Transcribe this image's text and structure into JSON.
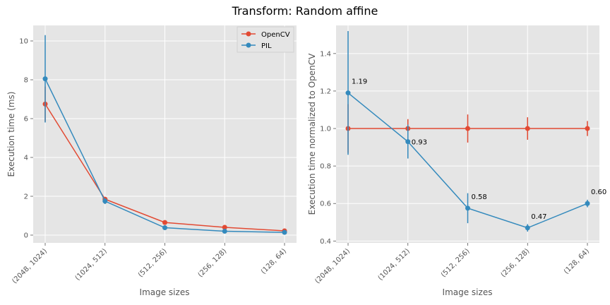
{
  "figure": {
    "title": "Transform: Random affine"
  },
  "chart_data": [
    {
      "type": "line",
      "title": "",
      "xlabel": "Image sizes",
      "ylabel": "Execution time (ms)",
      "categories": [
        "(2048, 1024)",
        "(1024, 512)",
        "(512, 256)",
        "(256, 128)",
        "(128, 64)"
      ],
      "ylim": [
        -0.4,
        10.8
      ],
      "yticks": [
        0,
        2,
        4,
        6,
        8,
        10
      ],
      "grid": true,
      "legend": "top-right",
      "series": [
        {
          "name": "OpenCV",
          "color": "#E24A33",
          "values": [
            6.75,
            1.85,
            0.65,
            0.4,
            0.22
          ],
          "err": [
            0.9,
            0.1,
            0.05,
            0.05,
            0.03
          ]
        },
        {
          "name": "PIL",
          "color": "#348ABD",
          "values": [
            8.05,
            1.75,
            0.38,
            0.2,
            0.14
          ],
          "err": [
            2.25,
            0.15,
            0.05,
            0.03,
            0.02
          ]
        }
      ]
    },
    {
      "type": "line",
      "title": "",
      "xlabel": "Image sizes",
      "ylabel": "Execution time normalized to OpenCV",
      "categories": [
        "(2048, 1024)",
        "(1024, 512)",
        "(512, 256)",
        "(256, 128)",
        "(128, 64)"
      ],
      "ylim": [
        0.39,
        1.55
      ],
      "yticks": [
        0.4,
        0.6,
        0.8,
        1.0,
        1.2,
        1.4
      ],
      "grid": true,
      "series": [
        {
          "color": "#E24A33",
          "values": [
            1.0,
            1.0,
            1.0,
            1.0,
            1.0
          ],
          "err": [
            0.13,
            0.05,
            0.075,
            0.06,
            0.04
          ]
        },
        {
          "color": "#348ABD",
          "values": [
            1.19,
            0.93,
            0.575,
            0.47,
            0.6
          ],
          "err": [
            0.33,
            0.09,
            0.08,
            0.02,
            0.02
          ]
        }
      ],
      "annotations": [
        "1.19",
        "0.93",
        "0.58",
        "0.47",
        "0.60"
      ]
    }
  ]
}
